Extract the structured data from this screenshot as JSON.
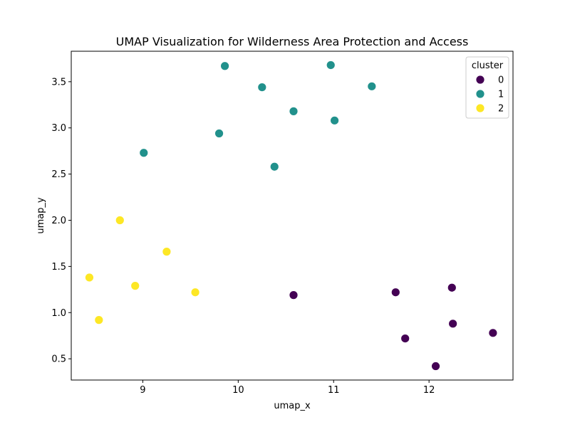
{
  "chart_data": {
    "type": "scatter",
    "title": "UMAP Visualization for Wilderness Area Protection and Access",
    "xlabel": "umap_x",
    "ylabel": "umap_y",
    "xlim": [
      8.25,
      12.88
    ],
    "ylim": [
      0.27,
      3.83
    ],
    "xticks": [
      9,
      10,
      11,
      12
    ],
    "yticks": [
      0.5,
      1.0,
      1.5,
      2.0,
      2.5,
      3.0,
      3.5
    ],
    "xtick_labels": [
      "9",
      "10",
      "11",
      "12"
    ],
    "ytick_labels": [
      "0.5",
      "1.0",
      "1.5",
      "2.0",
      "2.5",
      "3.0",
      "3.5"
    ],
    "grid": false,
    "legend": {
      "title": "cluster",
      "placement": "top-right"
    },
    "series": [
      {
        "name": "0",
        "color": "#440154",
        "points": [
          [
            10.58,
            1.19
          ],
          [
            11.65,
            1.22
          ],
          [
            12.24,
            1.27
          ],
          [
            12.25,
            0.88
          ],
          [
            12.67,
            0.78
          ],
          [
            11.75,
            0.72
          ],
          [
            12.07,
            0.42
          ]
        ]
      },
      {
        "name": "1",
        "color": "#21918c",
        "points": [
          [
            9.86,
            3.67
          ],
          [
            10.97,
            3.68
          ],
          [
            10.25,
            3.44
          ],
          [
            11.4,
            3.45
          ],
          [
            10.58,
            3.18
          ],
          [
            11.01,
            3.08
          ],
          [
            9.8,
            2.94
          ],
          [
            9.01,
            2.73
          ],
          [
            10.38,
            2.58
          ]
        ]
      },
      {
        "name": "2",
        "color": "#fde725",
        "points": [
          [
            8.76,
            2.0
          ],
          [
            9.25,
            1.66
          ],
          [
            8.44,
            1.38
          ],
          [
            8.92,
            1.29
          ],
          [
            9.55,
            1.22
          ],
          [
            8.54,
            0.92
          ]
        ]
      }
    ]
  }
}
